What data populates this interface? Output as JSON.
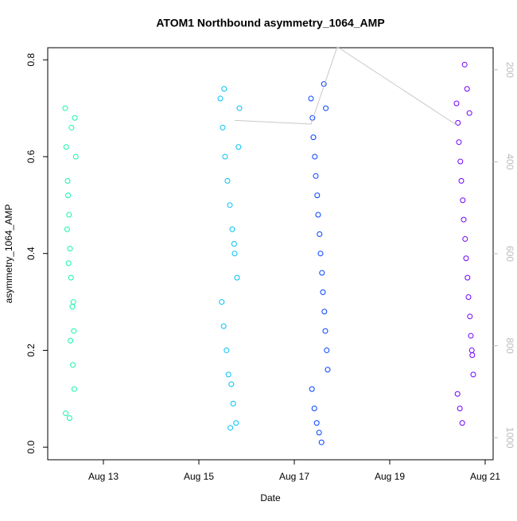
{
  "chart_data": {
    "type": "scatter",
    "title": "ATOM1 Northbound asymmetry_1064_AMP",
    "x_label": "Date",
    "y_label": "asymmetry_1064_AMP",
    "xlim": [
      11.833,
      21.167
    ],
    "xticks": [
      {
        "value": 13,
        "label": "Aug 13"
      },
      {
        "value": 15,
        "label": "Aug 15"
      },
      {
        "value": 17,
        "label": "Aug 17"
      },
      {
        "value": 19,
        "label": "Aug 19"
      },
      {
        "value": 21,
        "label": "Aug 21"
      }
    ],
    "ylim": [
      -0.026,
      0.825
    ],
    "yticks": [
      {
        "value": 0,
        "label": "0.0"
      },
      0.2,
      0.4,
      0.6,
      0.8
    ],
    "y2lim": [
      1048,
      152
    ],
    "y2ticks": [
      200,
      400,
      600,
      800,
      1000
    ],
    "y2_color": "#bbbbbb",
    "series": [
      {
        "color": "#14f5b0",
        "x": [
          12.2,
          12.22,
          12.25,
          12.28,
          12.3,
          12.32,
          12.35,
          12.38,
          12.4,
          12.42,
          12.24,
          12.27,
          12.31,
          12.36,
          12.39,
          12.21,
          12.33,
          12.26,
          12.37,
          12.29
        ],
        "values": [
          0.7,
          0.62,
          0.55,
          0.48,
          0.41,
          0.35,
          0.29,
          0.24,
          0.68,
          0.6,
          0.45,
          0.38,
          0.22,
          0.17,
          0.12,
          0.07,
          0.66,
          0.52,
          0.3,
          0.06
        ]
      },
      {
        "color": "#00c0f5",
        "x": [
          15.45,
          15.5,
          15.55,
          15.6,
          15.65,
          15.7,
          15.75,
          15.8,
          15.85,
          15.48,
          15.52,
          15.58,
          15.62,
          15.68,
          15.72,
          15.78,
          15.83,
          15.53,
          15.66,
          15.74
        ],
        "values": [
          0.72,
          0.66,
          0.6,
          0.55,
          0.5,
          0.45,
          0.4,
          0.35,
          0.7,
          0.3,
          0.25,
          0.2,
          0.15,
          0.13,
          0.09,
          0.05,
          0.62,
          0.74,
          0.04,
          0.42
        ]
      },
      {
        "color": "#0040ff",
        "x": [
          17.35,
          17.38,
          17.4,
          17.43,
          17.45,
          17.48,
          17.5,
          17.53,
          17.55,
          17.58,
          17.6,
          17.63,
          17.65,
          17.68,
          17.7,
          17.37,
          17.42,
          17.47,
          17.52,
          17.57,
          17.62,
          17.66
        ],
        "values": [
          0.72,
          0.68,
          0.64,
          0.6,
          0.56,
          0.52,
          0.48,
          0.44,
          0.4,
          0.36,
          0.32,
          0.28,
          0.24,
          0.2,
          0.16,
          0.12,
          0.08,
          0.05,
          0.03,
          0.01,
          0.75,
          0.7
        ]
      },
      {
        "color": "#7000ff",
        "x": [
          20.4,
          20.43,
          20.45,
          20.48,
          20.5,
          20.53,
          20.55,
          20.58,
          20.6,
          20.63,
          20.65,
          20.68,
          20.7,
          20.73,
          20.75,
          20.42,
          20.47,
          20.52,
          20.57,
          20.62,
          20.67,
          20.72
        ],
        "values": [
          0.71,
          0.67,
          0.63,
          0.59,
          0.55,
          0.51,
          0.47,
          0.43,
          0.39,
          0.35,
          0.31,
          0.27,
          0.23,
          0.19,
          0.15,
          0.11,
          0.08,
          0.05,
          0.79,
          0.74,
          0.69,
          0.2
        ]
      },
      {
        "color": "#c8c8c8",
        "axis": "y2",
        "line": true,
        "x": [
          15.75,
          17.35,
          17.9,
          20.4
        ],
        "values": [
          310,
          318,
          150,
          320
        ]
      }
    ]
  }
}
